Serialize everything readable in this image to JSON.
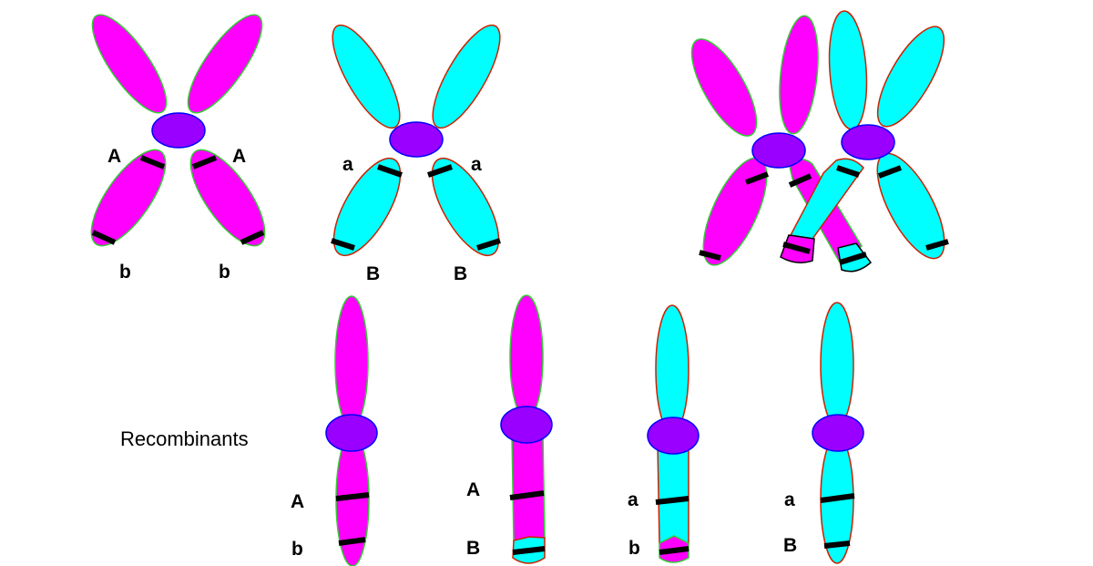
{
  "colors": {
    "magenta": "#ff00ff",
    "cyan": "#00ffff",
    "centromere": "#9900ff",
    "centromere_stroke": "#0000ff",
    "outline_green": "#33cc33",
    "outline_red": "#cc2200",
    "band": "#000000"
  },
  "parents": {
    "magenta": {
      "labels": [
        "A",
        "A",
        "b",
        "b"
      ]
    },
    "cyan": {
      "labels": [
        "a",
        "a",
        "B",
        "B"
      ]
    }
  },
  "crossover": {},
  "recombinants": {
    "caption": "Recombinants",
    "items": [
      {
        "top_label": "A",
        "bottom_label": "b",
        "arm_color": "magenta",
        "tip_color": "magenta"
      },
      {
        "top_label": "A",
        "bottom_label": "B",
        "arm_color": "magenta",
        "tip_color": "cyan"
      },
      {
        "top_label": "a",
        "bottom_label": "b",
        "arm_color": "cyan",
        "tip_color": "magenta"
      },
      {
        "top_label": "a",
        "bottom_label": "B",
        "arm_color": "cyan",
        "tip_color": "cyan"
      }
    ]
  }
}
